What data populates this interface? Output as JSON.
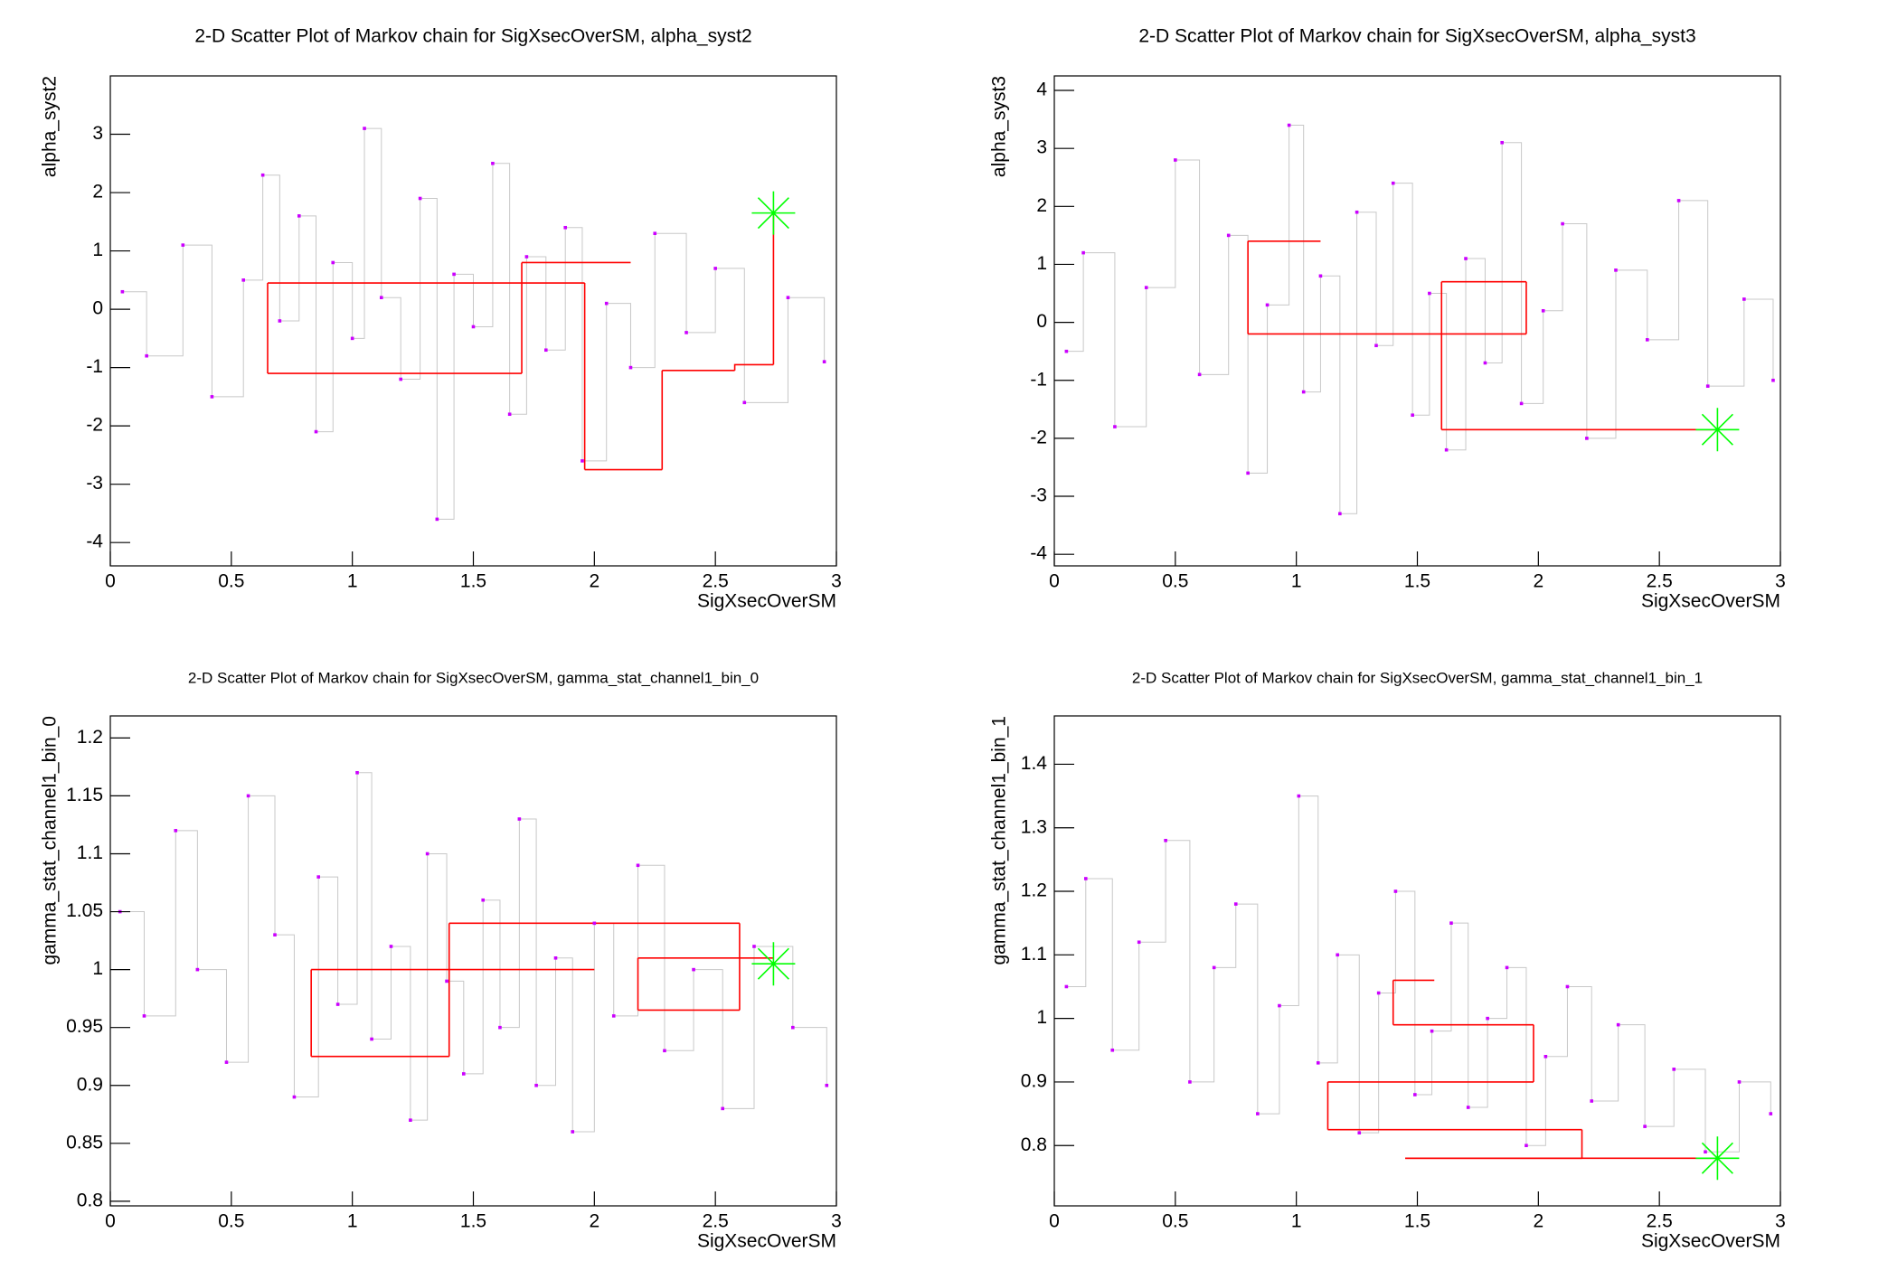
{
  "chart_data": [
    {
      "type": "scatter",
      "title": "2-D Scatter Plot of Markov chain for SigXsecOverSM, alpha_syst2",
      "x_label": "SigXsecOverSM",
      "y_label": "alpha_syst2",
      "xlim": [
        0,
        3
      ],
      "ylim": [
        -4.4,
        4.0
      ],
      "xticks": [
        0,
        0.5,
        1,
        1.5,
        2,
        2.5,
        3
      ],
      "yticks": [
        -4,
        -3,
        -2,
        -1,
        0,
        1,
        2,
        3
      ],
      "series": [
        {
          "color": "#cc00ff",
          "line_color": "#c8c8c8",
          "marker": "dot",
          "x": [
            0.05,
            0.15,
            0.3,
            0.42,
            0.55,
            0.63,
            0.7,
            0.78,
            0.85,
            0.92,
            1.0,
            1.05,
            1.12,
            1.2,
            1.28,
            1.35,
            1.42,
            1.5,
            1.58,
            1.65,
            1.72,
            1.8,
            1.88,
            1.95,
            2.05,
            2.15,
            2.25,
            2.38,
            2.5,
            2.62,
            2.8,
            2.95
          ],
          "values": [
            0.3,
            -0.8,
            1.1,
            -1.5,
            0.5,
            2.3,
            -0.2,
            1.6,
            -2.1,
            0.8,
            -0.5,
            3.1,
            0.2,
            -1.2,
            1.9,
            -3.6,
            0.6,
            -0.3,
            2.5,
            -1.8,
            0.9,
            -0.7,
            1.4,
            -2.6,
            0.1,
            -1.0,
            1.3,
            -0.4,
            0.7,
            -1.6,
            0.2,
            -0.9
          ]
        },
        {
          "color": "#ff0000",
          "line_color": "#ff0000",
          "marker": "none",
          "x": [
            2.74,
            2.74,
            2.58,
            2.28,
            2.28,
            1.96,
            1.96,
            0.65,
            0.65,
            1.7,
            1.7,
            2.15
          ],
          "values": [
            1.65,
            -0.95,
            -1.05,
            -1.05,
            -2.75,
            -2.75,
            0.45,
            0.45,
            -1.1,
            -1.1,
            0.8,
            0.8
          ]
        },
        {
          "color": "#00ff00",
          "marker": "star",
          "x": [
            2.74
          ],
          "values": [
            1.65
          ]
        }
      ]
    },
    {
      "type": "scatter",
      "title": "2-D Scatter Plot of Markov chain for SigXsecOverSM, alpha_syst3",
      "x_label": "SigXsecOverSM",
      "y_label": "alpha_syst3",
      "xlim": [
        0,
        3
      ],
      "ylim": [
        -4.2,
        4.25
      ],
      "xticks": [
        0,
        0.5,
        1,
        1.5,
        2,
        2.5,
        3
      ],
      "yticks": [
        -4,
        -3,
        -2,
        -1,
        0,
        1,
        2,
        3,
        4
      ],
      "series": [
        {
          "color": "#cc00ff",
          "line_color": "#c8c8c8",
          "marker": "dot",
          "x": [
            0.05,
            0.12,
            0.25,
            0.38,
            0.5,
            0.6,
            0.72,
            0.8,
            0.88,
            0.97,
            1.03,
            1.1,
            1.18,
            1.25,
            1.33,
            1.4,
            1.48,
            1.55,
            1.62,
            1.7,
            1.78,
            1.85,
            1.93,
            2.02,
            2.1,
            2.2,
            2.32,
            2.45,
            2.58,
            2.7,
            2.85,
            2.97
          ],
          "values": [
            -0.5,
            1.2,
            -1.8,
            0.6,
            2.8,
            -0.9,
            1.5,
            -2.6,
            0.3,
            3.4,
            -1.2,
            0.8,
            -3.3,
            1.9,
            -0.4,
            2.4,
            -1.6,
            0.5,
            -2.2,
            1.1,
            -0.7,
            3.1,
            -1.4,
            0.2,
            1.7,
            -2.0,
            0.9,
            -0.3,
            2.1,
            -1.1,
            0.4,
            -1.0
          ]
        },
        {
          "color": "#ff0000",
          "line_color": "#ff0000",
          "marker": "none",
          "x": [
            2.74,
            1.6,
            1.6,
            1.95,
            1.95,
            0.8,
            0.8,
            1.1
          ],
          "values": [
            -1.85,
            -1.85,
            0.7,
            0.7,
            -0.2,
            -0.2,
            1.4,
            1.4
          ]
        },
        {
          "color": "#00ff00",
          "marker": "star",
          "x": [
            2.74
          ],
          "values": [
            -1.85
          ]
        }
      ]
    },
    {
      "type": "scatter",
      "title": "2-D Scatter Plot of Markov chain for SigXsecOverSM, gamma_stat_channel1_bin_0",
      "x_label": "SigXsecOverSM",
      "y_label": "gamma_stat_channel1_bin_0",
      "xlim": [
        0,
        3
      ],
      "ylim": [
        0.796,
        1.219
      ],
      "xticks": [
        0,
        0.5,
        1,
        1.5,
        2,
        2.5,
        3
      ],
      "yticks": [
        0.8,
        0.85,
        0.9,
        0.95,
        1,
        1.05,
        1.1,
        1.15,
        1.2
      ],
      "series": [
        {
          "color": "#cc00ff",
          "line_color": "#c8c8c8",
          "marker": "dot",
          "x": [
            0.04,
            0.14,
            0.27,
            0.36,
            0.48,
            0.57,
            0.68,
            0.76,
            0.86,
            0.94,
            1.02,
            1.08,
            1.16,
            1.24,
            1.31,
            1.39,
            1.46,
            1.54,
            1.61,
            1.69,
            1.76,
            1.84,
            1.91,
            2.0,
            2.08,
            2.18,
            2.29,
            2.41,
            2.53,
            2.66,
            2.82,
            2.96
          ],
          "values": [
            1.05,
            0.96,
            1.12,
            1.0,
            0.92,
            1.15,
            1.03,
            0.89,
            1.08,
            0.97,
            1.17,
            0.94,
            1.02,
            0.87,
            1.1,
            0.99,
            0.91,
            1.06,
            0.95,
            1.13,
            0.9,
            1.01,
            0.86,
            1.04,
            0.96,
            1.09,
            0.93,
            1.0,
            0.88,
            1.02,
            0.95,
            0.9
          ]
        },
        {
          "color": "#ff0000",
          "line_color": "#ff0000",
          "marker": "none",
          "x": [
            2.74,
            2.18,
            2.18,
            2.6,
            2.6,
            1.4,
            1.4,
            0.83,
            0.83,
            2.0
          ],
          "values": [
            1.01,
            1.01,
            0.965,
            0.965,
            1.04,
            1.04,
            0.925,
            0.925,
            1.0,
            1.0
          ]
        },
        {
          "color": "#00ff00",
          "marker": "star",
          "x": [
            2.74
          ],
          "values": [
            1.005
          ]
        }
      ]
    },
    {
      "type": "scatter",
      "title": "2-D Scatter Plot of Markov chain for SigXsecOverSM, gamma_stat_channel1_bin_1",
      "x_label": "SigXsecOverSM",
      "y_label": "gamma_stat_channel1_bin_1",
      "xlim": [
        0,
        3
      ],
      "ylim": [
        0.705,
        1.476
      ],
      "xticks": [
        0,
        0.5,
        1,
        1.5,
        2,
        2.5,
        3
      ],
      "yticks": [
        0.8,
        0.9,
        1,
        1.1,
        1.2,
        1.3,
        1.4
      ],
      "series": [
        {
          "color": "#cc00ff",
          "line_color": "#c8c8c8",
          "marker": "dot",
          "x": [
            0.05,
            0.13,
            0.24,
            0.35,
            0.46,
            0.56,
            0.66,
            0.75,
            0.84,
            0.93,
            1.01,
            1.09,
            1.17,
            1.26,
            1.34,
            1.41,
            1.49,
            1.56,
            1.64,
            1.71,
            1.79,
            1.87,
            1.95,
            2.03,
            2.12,
            2.22,
            2.33,
            2.44,
            2.56,
            2.69,
            2.83,
            2.96
          ],
          "values": [
            1.05,
            1.22,
            0.95,
            1.12,
            1.28,
            0.9,
            1.08,
            1.18,
            0.85,
            1.02,
            1.35,
            0.93,
            1.1,
            0.82,
            1.04,
            1.2,
            0.88,
            0.98,
            1.15,
            0.86,
            1.0,
            1.08,
            0.8,
            0.94,
            1.05,
            0.87,
            0.99,
            0.83,
            0.92,
            0.79,
            0.9,
            0.85
          ]
        },
        {
          "color": "#ff0000",
          "line_color": "#ff0000",
          "marker": "none",
          "x": [
            2.74,
            1.45,
            1.45,
            2.18,
            2.18,
            1.13,
            1.13,
            1.98,
            1.98,
            1.4,
            1.4,
            1.57
          ],
          "values": [
            0.78,
            0.78,
            0.78,
            0.78,
            0.825,
            0.825,
            0.9,
            0.9,
            0.99,
            0.99,
            1.06,
            1.06
          ]
        },
        {
          "color": "#00ff00",
          "marker": "star",
          "x": [
            2.74
          ],
          "values": [
            0.78
          ]
        }
      ]
    }
  ]
}
